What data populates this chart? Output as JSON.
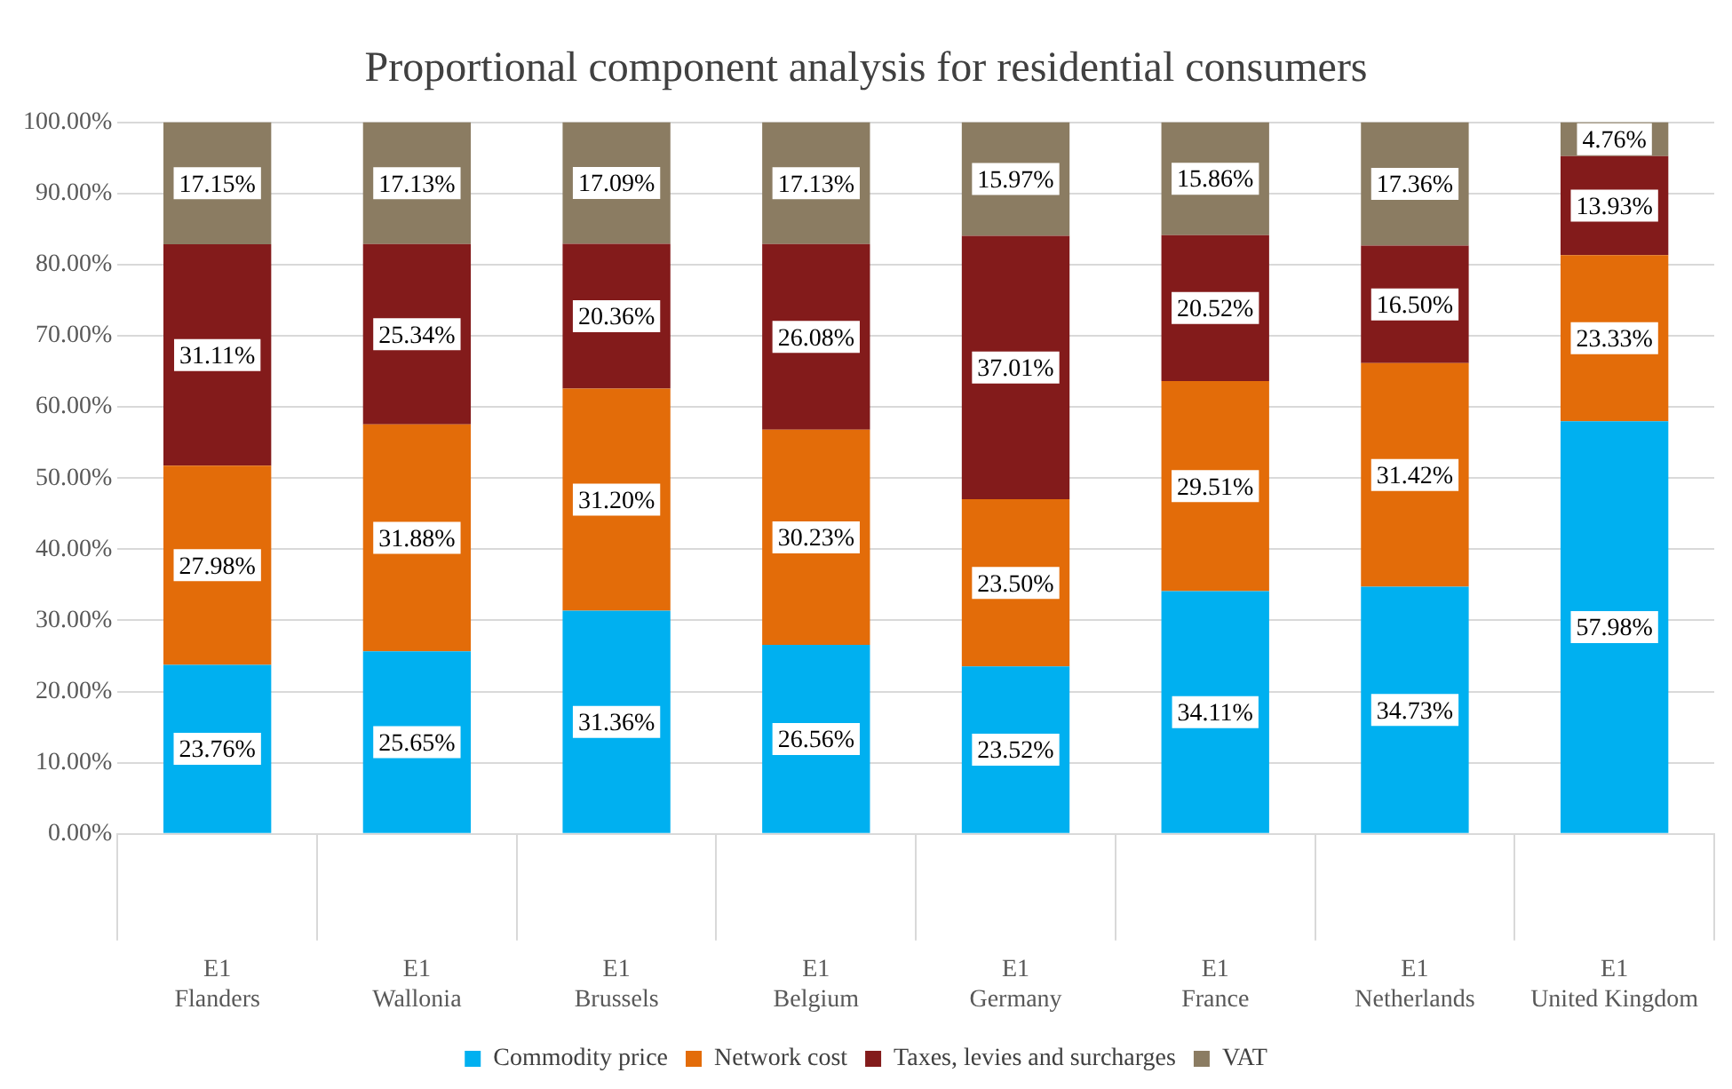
{
  "chart_data": {
    "type": "bar",
    "stacked": true,
    "title": "Proportional component analysis for residential consumers",
    "categories": [
      "E1\nFlanders",
      "E1\nWallonia",
      "E1\nBrussels",
      "E1\nBelgium",
      "E1\nGermany",
      "E1\nFrance",
      "E1\nNetherlands",
      "E1\nUnited Kingdom"
    ],
    "series": [
      {
        "name": "Commodity price",
        "color": "#00b0f0",
        "values": [
          23.76,
          25.65,
          31.36,
          26.56,
          23.52,
          34.11,
          34.73,
          57.98
        ],
        "value_labels": [
          "23.76%",
          "25.65%",
          "31.36%",
          "26.56%",
          "23.52%",
          "34.11%",
          "34.73%",
          "57.98%"
        ]
      },
      {
        "name": "Network cost",
        "color": "#e36c09",
        "values": [
          27.98,
          31.88,
          31.2,
          30.23,
          23.5,
          29.51,
          31.42,
          23.33
        ],
        "value_labels": [
          "27.98%",
          "31.88%",
          "31.20%",
          "30.23%",
          "23.50%",
          "29.51%",
          "31.42%",
          "23.33%"
        ]
      },
      {
        "name": "Taxes, levies and surcharges",
        "color": "#831b1b",
        "values": [
          31.11,
          25.34,
          20.36,
          26.08,
          37.01,
          20.52,
          16.5,
          13.93
        ],
        "value_labels": [
          "31.11%",
          "25.34%",
          "20.36%",
          "26.08%",
          "37.01%",
          "20.52%",
          "16.50%",
          "13.93%"
        ]
      },
      {
        "name": "VAT",
        "color": "#8b7c62",
        "values": [
          17.15,
          17.13,
          17.09,
          17.13,
          15.97,
          15.86,
          17.36,
          4.76
        ],
        "value_labels": [
          "17.15%",
          "17.13%",
          "17.09%",
          "17.13%",
          "15.97%",
          "15.86%",
          "17.36%",
          "4.76%"
        ]
      }
    ],
    "ylim": [
      0,
      100
    ],
    "yticks": [
      {
        "value": 0,
        "label": "0.00%"
      },
      {
        "value": 10,
        "label": "10.00%"
      },
      {
        "value": 20,
        "label": "20.00%"
      },
      {
        "value": 30,
        "label": "30.00%"
      },
      {
        "value": 40,
        "label": "40.00%"
      },
      {
        "value": 50,
        "label": "50.00%"
      },
      {
        "value": 60,
        "label": "60.00%"
      },
      {
        "value": 70,
        "label": "70.00%"
      },
      {
        "value": 80,
        "label": "80.00%"
      },
      {
        "value": 90,
        "label": "90.00%"
      },
      {
        "value": 100,
        "label": "100.00%"
      }
    ],
    "grid": "y",
    "legend": "bottom"
  }
}
